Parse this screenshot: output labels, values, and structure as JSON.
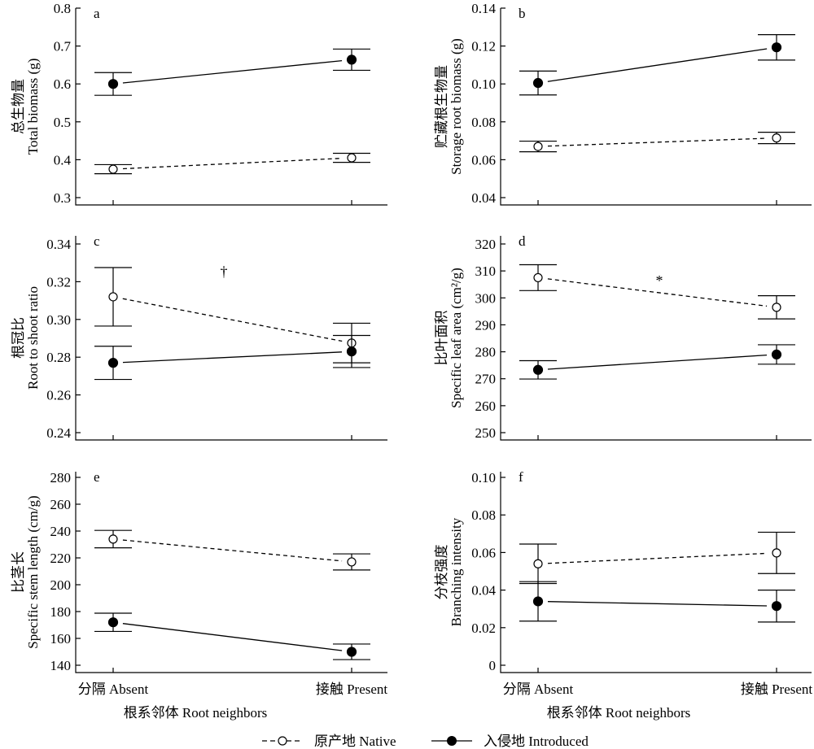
{
  "x_categories": [
    "分隔 Absent",
    "接触 Present"
  ],
  "xlabel": "根系邻体 Root neighbors",
  "legend": [
    {
      "label": "原产地 Native",
      "marker": "open",
      "line": "dashed"
    },
    {
      "label": "入侵地 Introduced",
      "marker": "filled",
      "line": "solid"
    }
  ],
  "chart_data": [
    {
      "type": "line",
      "letter": "a",
      "ylabel_cn": "总生物量",
      "ylabel_en": "Total biomass (g)",
      "ylim": [
        0.3,
        0.8
      ],
      "yticks": [
        "0.3",
        "0.4",
        "0.5",
        "0.6",
        "0.7",
        "0.8"
      ],
      "categories": [
        "分隔 Absent",
        "接触 Present"
      ],
      "series": [
        {
          "name": "原产地 Native",
          "values": [
            0.375,
            0.405
          ],
          "errors": [
            0.012,
            0.012
          ]
        },
        {
          "name": "入侵地 Introduced",
          "values": [
            0.6,
            0.664
          ],
          "errors": [
            0.03,
            0.028
          ]
        }
      ],
      "annotation": ""
    },
    {
      "type": "line",
      "letter": "b",
      "ylabel_cn": "贮藏根生物量",
      "ylabel_en": "Storage root biomass (g)",
      "ylim": [
        0.04,
        0.14
      ],
      "yticks": [
        "0.04",
        "0.06",
        "0.08",
        "0.10",
        "0.12",
        "0.14"
      ],
      "categories": [
        "分隔 Absent",
        "接触 Present"
      ],
      "series": [
        {
          "name": "原产地 Native",
          "values": [
            0.067,
            0.0715
          ],
          "errors": [
            0.0028,
            0.003
          ]
        },
        {
          "name": "入侵地 Introduced",
          "values": [
            0.1005,
            0.1193
          ],
          "errors": [
            0.0063,
            0.0067
          ]
        }
      ],
      "annotation": ""
    },
    {
      "type": "line",
      "letter": "c",
      "ylabel_cn": "根冠比",
      "ylabel_en": "Root to shoot ratio",
      "ylim": [
        0.24,
        0.34
      ],
      "yticks": [
        "0.24",
        "0.26",
        "0.28",
        "0.30",
        "0.32",
        "0.34"
      ],
      "categories": [
        "分隔 Absent",
        "接触 Present"
      ],
      "series": [
        {
          "name": "原产地 Native",
          "values": [
            0.312,
            0.2875
          ],
          "errors": [
            0.0155,
            0.0105
          ]
        },
        {
          "name": "入侵地 Introduced",
          "values": [
            0.277,
            0.283
          ],
          "errors": [
            0.0088,
            0.0085
          ]
        }
      ],
      "annotation": "†"
    },
    {
      "type": "line",
      "letter": "d",
      "ylabel_cn": "比叶面积",
      "ylabel_en": "Specific leaf area (cm²/g)",
      "ylim": [
        250,
        320
      ],
      "yticks": [
        "250",
        "260",
        "270",
        "280",
        "290",
        "300",
        "310",
        "320"
      ],
      "categories": [
        "分隔 Absent",
        "接触 Present"
      ],
      "series": [
        {
          "name": "原产地 Native",
          "values": [
            307.5,
            296.5
          ],
          "errors": [
            4.8,
            4.3
          ]
        },
        {
          "name": "入侵地 Introduced",
          "values": [
            273.3,
            279.0
          ],
          "errors": [
            3.4,
            3.6
          ]
        }
      ],
      "annotation": "*"
    },
    {
      "type": "line",
      "letter": "e",
      "ylabel_cn": "比茎长",
      "ylabel_en": "Specific stem length (cm/g)",
      "ylim": [
        140,
        280
      ],
      "yticks": [
        "140",
        "160",
        "180",
        "200",
        "220",
        "240",
        "260",
        "280"
      ],
      "categories": [
        "分隔 Absent",
        "接触 Present"
      ],
      "series": [
        {
          "name": "原产地 Native",
          "values": [
            234,
            217
          ],
          "errors": [
            6.5,
            6.0
          ]
        },
        {
          "name": "入侵地 Introduced",
          "values": [
            172,
            150
          ],
          "errors": [
            6.8,
            5.8
          ]
        }
      ],
      "annotation": ""
    },
    {
      "type": "line",
      "letter": "f",
      "ylabel_cn": "分枝强度",
      "ylabel_en": "Branching intensity",
      "ylim": [
        0,
        0.1
      ],
      "yticks": [
        "0",
        "0.02",
        "0.04",
        "0.06",
        "0.08",
        "0.10"
      ],
      "categories": [
        "分隔 Absent",
        "接触 Present"
      ],
      "series": [
        {
          "name": "原产地 Native",
          "values": [
            0.054,
            0.0598
          ],
          "errors": [
            0.0105,
            0.011
          ]
        },
        {
          "name": "入侵地 Introduced",
          "values": [
            0.034,
            0.0315
          ],
          "errors": [
            0.0105,
            0.0085
          ]
        }
      ],
      "annotation": ""
    }
  ]
}
